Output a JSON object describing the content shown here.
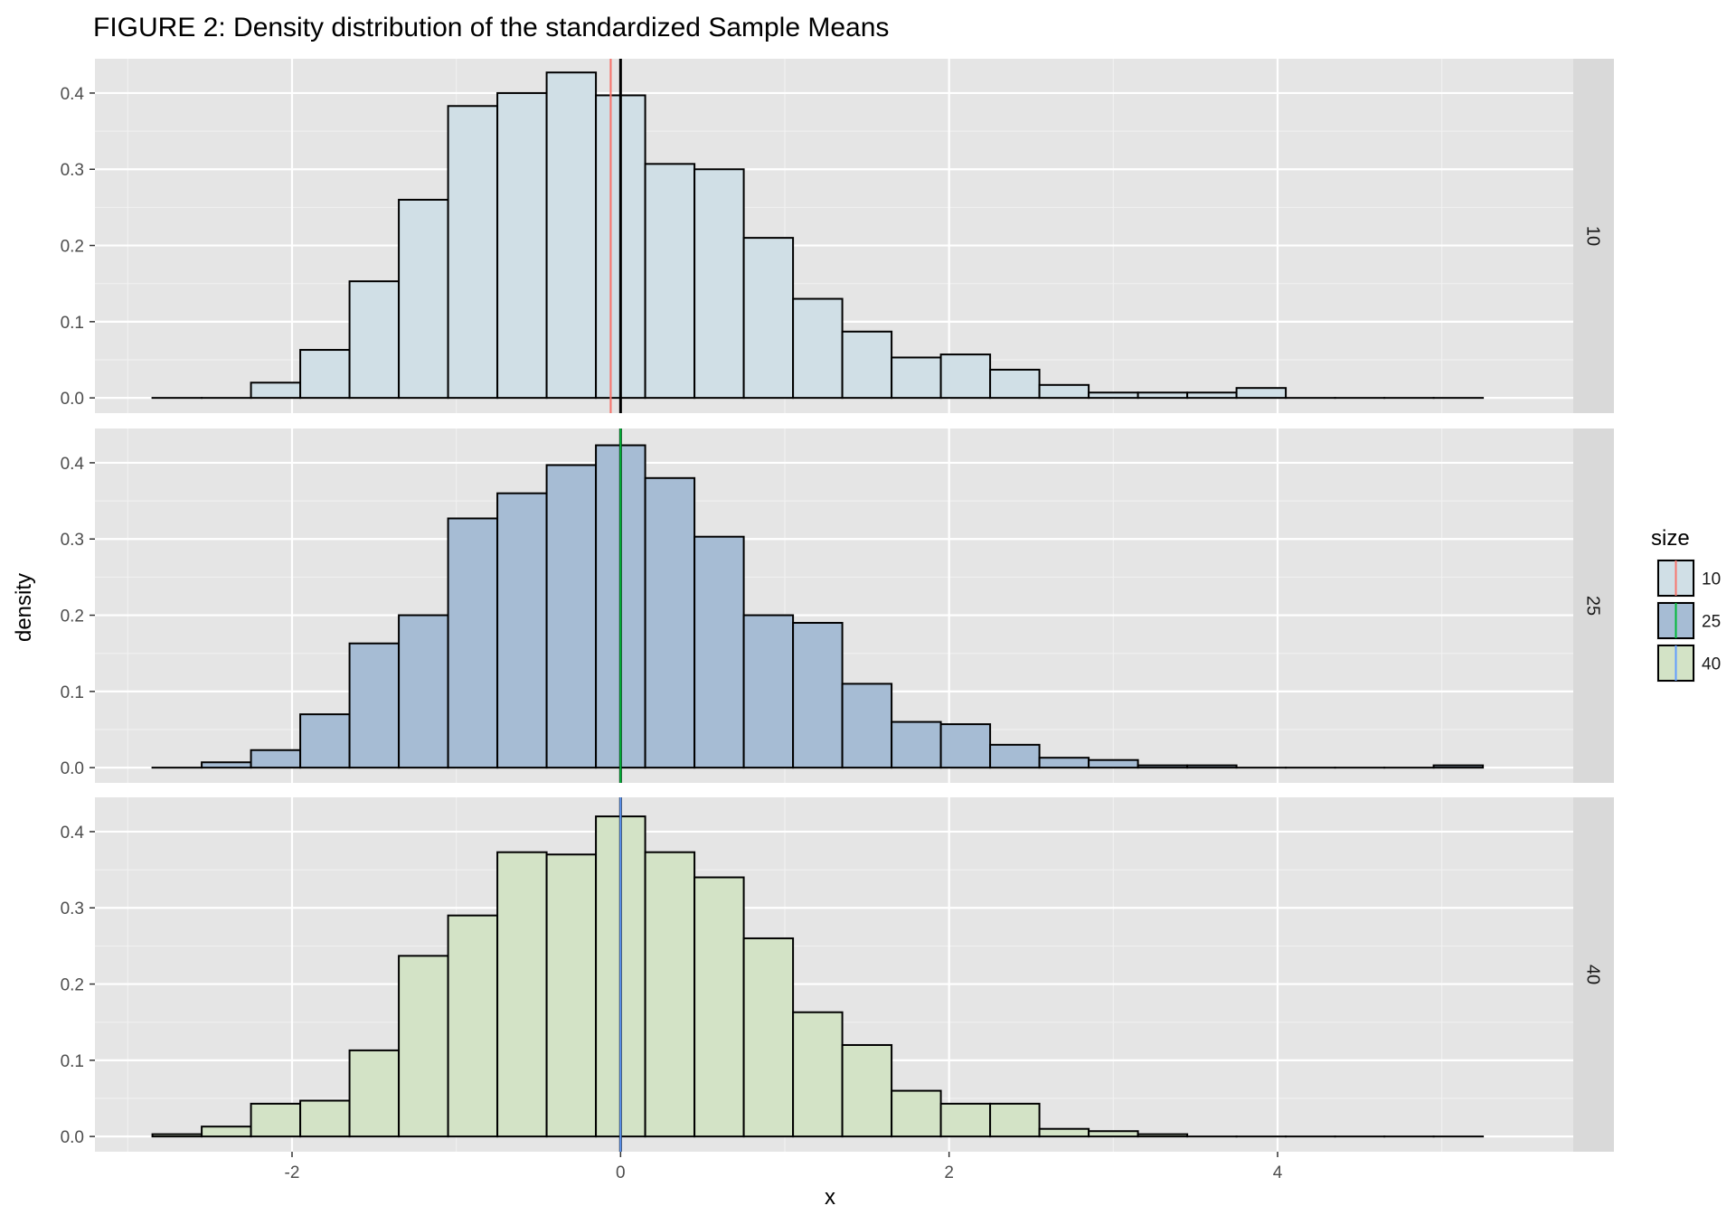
{
  "chart_data": {
    "type": "bar",
    "subtype": "faceted-histogram",
    "title": "FIGURE 2: Density distribution of the standardized Sample Means",
    "xlabel": "x",
    "ylabel": "density",
    "xlim": [
      -3.2,
      5.8
    ],
    "ylim": [
      -0.02,
      0.445
    ],
    "x_ticks": [
      -2,
      0,
      2,
      4
    ],
    "x_tick_labels": [
      "-2",
      "0",
      "2",
      "4"
    ],
    "y_ticks": [
      0.0,
      0.1,
      0.2,
      0.3,
      0.4
    ],
    "y_tick_labels": [
      "0.0",
      "0.1",
      "0.2",
      "0.3",
      "0.4"
    ],
    "grid": true,
    "legend_position": "right",
    "legend": {
      "title": "size",
      "items": [
        {
          "label": "10",
          "fill": "#d0dfe6",
          "line": "#f8766d"
        },
        {
          "label": "25",
          "fill": "#a6bcd4",
          "line": "#00ba38"
        },
        {
          "label": "40",
          "fill": "#d3e3c6",
          "line": "#619cff"
        }
      ]
    },
    "bin_edges": [
      -2.85,
      -2.55,
      -2.25,
      -1.95,
      -1.65,
      -1.35,
      -1.05,
      -0.75,
      -0.45,
      -0.15,
      0.15,
      0.45,
      0.75,
      1.05,
      1.35,
      1.65,
      1.95,
      2.25,
      2.55,
      2.85,
      3.15,
      3.45,
      3.75,
      4.05,
      4.35,
      4.65,
      4.95,
      5.25
    ],
    "facets": [
      {
        "label": "10",
        "fill": "#d0dfe6",
        "mean_line": {
          "x": -0.06,
          "color": "#f8766d"
        },
        "zero_line": {
          "x": 0,
          "color": "#000000"
        },
        "values": [
          0.0,
          0.0,
          0.02,
          0.063,
          0.153,
          0.26,
          0.383,
          0.4,
          0.427,
          0.397,
          0.307,
          0.3,
          0.21,
          0.13,
          0.087,
          0.053,
          0.057,
          0.037,
          0.017,
          0.007,
          0.007,
          0.007,
          0.013,
          0.0,
          0.0,
          0.0,
          0.0
        ]
      },
      {
        "label": "25",
        "fill": "#a6bcd4",
        "mean_line": {
          "x": 0.0,
          "color": "#00ba38"
        },
        "zero_line": {
          "x": 0,
          "color": "#000000"
        },
        "values": [
          0.0,
          0.007,
          0.023,
          0.07,
          0.163,
          0.2,
          0.327,
          0.36,
          0.397,
          0.423,
          0.38,
          0.303,
          0.2,
          0.19,
          0.11,
          0.06,
          0.057,
          0.03,
          0.013,
          0.01,
          0.003,
          0.003,
          0.0,
          0.0,
          0.0,
          0.0,
          0.003
        ]
      },
      {
        "label": "40",
        "fill": "#d3e3c6",
        "mean_line": {
          "x": 0.0,
          "color": "#619cff"
        },
        "zero_line": {
          "x": 0,
          "color": "#000000"
        },
        "values": [
          0.003,
          0.013,
          0.043,
          0.047,
          0.113,
          0.237,
          0.29,
          0.373,
          0.37,
          0.42,
          0.373,
          0.34,
          0.26,
          0.163,
          0.12,
          0.06,
          0.043,
          0.043,
          0.01,
          0.007,
          0.003,
          0.0,
          0.0,
          0.0,
          0.0,
          0.0,
          0.0
        ]
      }
    ]
  }
}
